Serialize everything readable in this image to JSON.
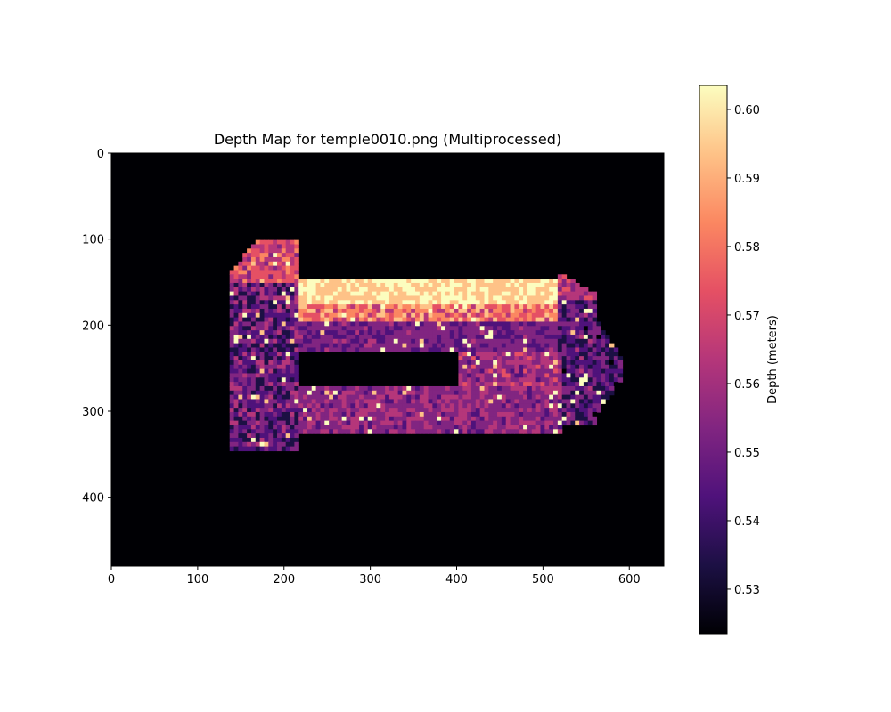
{
  "chart_data": {
    "type": "heatmap",
    "title": "Depth Map for temple0010.png (Multiprocessed)",
    "xlabel": "",
    "ylabel": "",
    "xlim": [
      0,
      640
    ],
    "ylim": [
      480,
      0
    ],
    "x_ticks": [
      0,
      100,
      200,
      300,
      400,
      500,
      600
    ],
    "y_ticks": [
      0,
      100,
      200,
      300,
      400
    ],
    "background_value": "none",
    "colormap": "magma",
    "colorbar": {
      "label": "Depth (meters)",
      "range": [
        0.5235,
        0.6035
      ],
      "ticks": [
        "0.53",
        "0.54",
        "0.55",
        "0.56",
        "0.57",
        "0.58",
        "0.59",
        "0.60"
      ]
    },
    "object_region": {
      "x_extent": [
        135,
        590
      ],
      "y_extent": [
        98,
        342
      ],
      "inner_hole": {
        "x": [
          213,
          402
        ],
        "y": [
          228,
          268
        ]
      }
    }
  },
  "colors": {
    "background": "#000004",
    "magma": [
      "#000004",
      "#1c1044",
      "#4f127b",
      "#812581",
      "#b5367a",
      "#e55064",
      "#fb8761",
      "#fec287",
      "#fcfdbf"
    ]
  }
}
